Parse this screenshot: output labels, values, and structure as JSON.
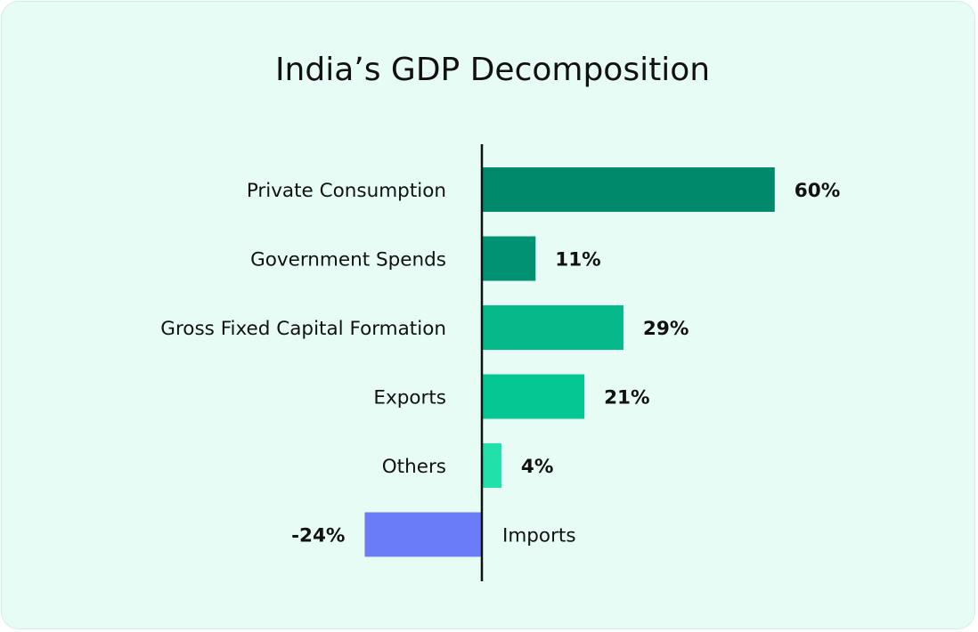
{
  "chart_data": {
    "type": "bar",
    "orientation": "horizontal",
    "title": "India’s GDP Decomposition",
    "xlabel": "",
    "ylabel": "",
    "grid": false,
    "xlim": [
      -24,
      60
    ],
    "categories": [
      "Private Consumption",
      "Government Spends",
      "Gross Fixed Capital Formation",
      "Exports",
      "Others",
      "Imports"
    ],
    "values": [
      60,
      11,
      29,
      21,
      4,
      -24
    ],
    "value_labels": [
      "60%",
      "11%",
      "29%",
      "21%",
      "4%",
      "-24%"
    ],
    "colors": [
      "#00896a",
      "#009272",
      "#05b98a",
      "#05c793",
      "#22e0aa",
      "#6a7cf7"
    ],
    "baseline_color": "#111111"
  }
}
